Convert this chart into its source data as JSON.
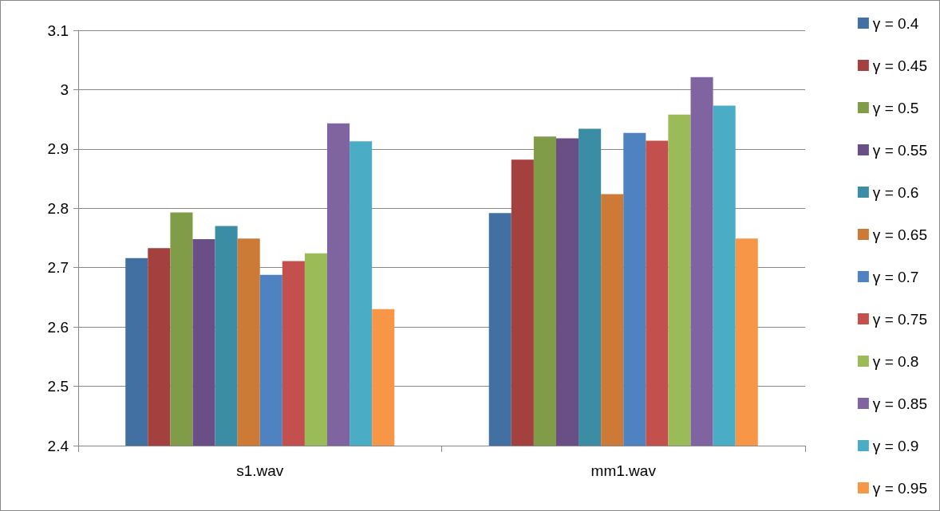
{
  "chart_data": {
    "type": "bar",
    "categories": [
      "s1.wav",
      "mm1.wav"
    ],
    "series": [
      {
        "name": "γ = 0.4",
        "color": "#4370a3",
        "values": [
          2.716,
          2.792
        ]
      },
      {
        "name": "γ = 0.45",
        "color": "#a4403e",
        "values": [
          2.733,
          2.882
        ]
      },
      {
        "name": "γ = 0.5",
        "color": "#809c49",
        "values": [
          2.793,
          2.921
        ]
      },
      {
        "name": "γ = 0.55",
        "color": "#6a4f87",
        "values": [
          2.748,
          2.918
        ]
      },
      {
        "name": "γ = 0.6",
        "color": "#3a8da4",
        "values": [
          2.77,
          2.934
        ]
      },
      {
        "name": "γ = 0.65",
        "color": "#cd7a36",
        "values": [
          2.749,
          2.824
        ]
      },
      {
        "name": "γ = 0.7",
        "color": "#4f82c0",
        "values": [
          2.688,
          2.927
        ]
      },
      {
        "name": "γ = 0.75",
        "color": "#c4504e",
        "values": [
          2.711,
          2.914
        ]
      },
      {
        "name": "γ = 0.8",
        "color": "#9bbb59",
        "values": [
          2.724,
          2.958
        ]
      },
      {
        "name": "γ = 0.85",
        "color": "#8064a2",
        "values": [
          2.943,
          3.021
        ]
      },
      {
        "name": "γ = 0.9",
        "color": "#4bacc6",
        "values": [
          2.913,
          2.973
        ]
      },
      {
        "name": "γ = 0.95",
        "color": "#f79646",
        "values": [
          2.63,
          2.749
        ]
      }
    ],
    "ylim": [
      2.4,
      3.1
    ],
    "yticks": [
      2.4,
      2.5,
      2.6,
      2.7,
      2.8,
      2.9,
      3,
      3.1
    ],
    "grid": "y",
    "legend": "right"
  }
}
